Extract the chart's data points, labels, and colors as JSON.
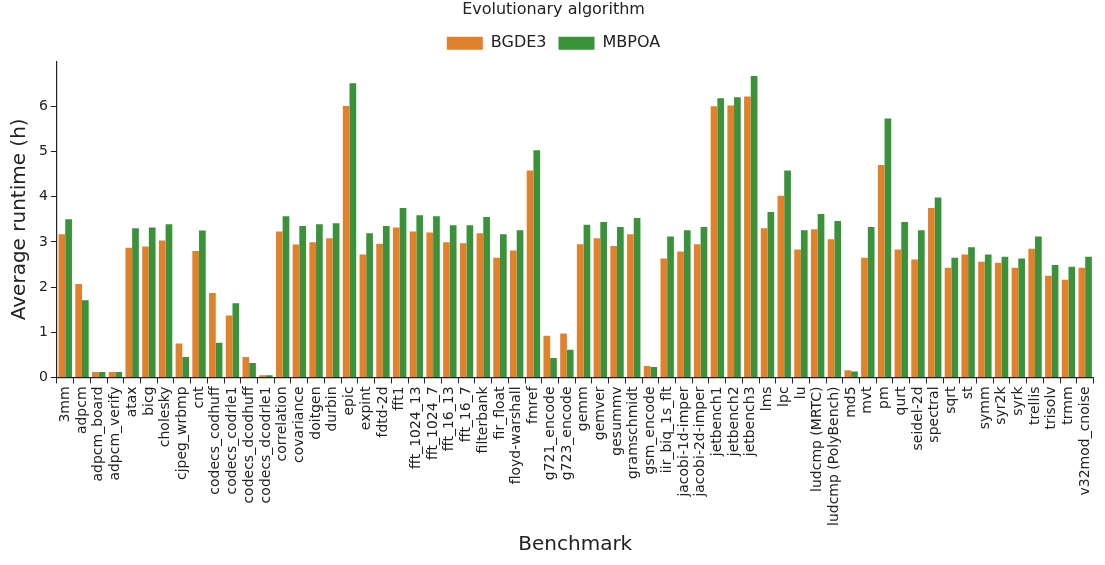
{
  "chart_data": {
    "type": "bar",
    "xlabel": "Benchmark",
    "ylabel": "Average runtime (h)",
    "legend_title": "Evolutionary algorithm",
    "legend": "top",
    "grid": false,
    "categories": [
      "3mm",
      "adpcm",
      "adpcm_board",
      "adpcm_verify",
      "atax",
      "bicg",
      "cholesky",
      "cjpeg_wrbmp",
      "cnt",
      "codecs_codhuff",
      "codecs_codrle1",
      "codecs_dcodhuff",
      "codecs_dcodrle1",
      "correlation",
      "covariance",
      "doitgen",
      "durbin",
      "epic",
      "expint",
      "fdtd-2d",
      "fft1",
      "fft_1024_13",
      "fft_1024_7",
      "fft_16_13",
      "fft_16_7",
      "filterbank",
      "fir_float",
      "floyd-warshall",
      "fmref",
      "g721_encode",
      "g723_encode",
      "gemm",
      "gemver",
      "gesummv",
      "gramschmidt",
      "gsm_encode",
      "iir_biq_1s_flt",
      "jacobi-1d-imper",
      "jacobi-2d-imper",
      "jetbench1",
      "jetbench2",
      "jetbench3",
      "lms",
      "lpc",
      "lu",
      "ludcmp (MRTC)",
      "ludcmp (PolyBench)",
      "md5",
      "mvt",
      "pm",
      "qurt",
      "seidel-2d",
      "spectral",
      "sqrt",
      "st",
      "symm",
      "syr2k",
      "syrk",
      "trellis",
      "trisolv",
      "trmm",
      "v32mod_cnoise"
    ],
    "ylim": [
      0,
      7
    ],
    "yticks": [
      0,
      1,
      2,
      3,
      4,
      5,
      6
    ],
    "series": [
      {
        "name": "BGDE3",
        "color": "#e1812c",
        "values": [
          3.17,
          2.07,
          0.12,
          0.12,
          2.87,
          2.9,
          3.03,
          0.75,
          2.8,
          1.87,
          1.37,
          0.45,
          0.05,
          3.23,
          2.94,
          2.99,
          3.08,
          6.01,
          2.72,
          2.96,
          3.32,
          3.23,
          3.21,
          2.99,
          2.97,
          3.19,
          2.65,
          2.81,
          4.58,
          0.92,
          0.97,
          2.95,
          3.08,
          2.91,
          3.17,
          0.25,
          2.63,
          2.79,
          2.95,
          6.0,
          6.02,
          6.22,
          3.3,
          4.02,
          2.83,
          3.28,
          3.06,
          0.16,
          2.65,
          4.7,
          2.83,
          2.61,
          3.75,
          2.43,
          2.72,
          2.56,
          2.54,
          2.43,
          2.85,
          2.25,
          2.16,
          2.43
        ]
      },
      {
        "name": "MBPOA",
        "color": "#3a923a",
        "values": [
          3.5,
          1.71,
          0.12,
          0.12,
          3.3,
          3.32,
          3.39,
          0.45,
          3.25,
          0.77,
          1.64,
          0.32,
          0.05,
          3.57,
          3.35,
          3.39,
          3.41,
          6.51,
          3.19,
          3.35,
          3.75,
          3.59,
          3.57,
          3.37,
          3.37,
          3.55,
          3.17,
          3.26,
          5.03,
          0.43,
          0.61,
          3.38,
          3.44,
          3.33,
          3.53,
          0.23,
          3.12,
          3.26,
          3.33,
          6.18,
          6.2,
          6.67,
          3.66,
          4.58,
          3.26,
          3.62,
          3.46,
          0.13,
          3.33,
          5.73,
          3.44,
          3.26,
          3.98,
          2.65,
          2.88,
          2.72,
          2.67,
          2.63,
          3.12,
          2.49,
          2.45,
          2.67
        ]
      }
    ]
  }
}
